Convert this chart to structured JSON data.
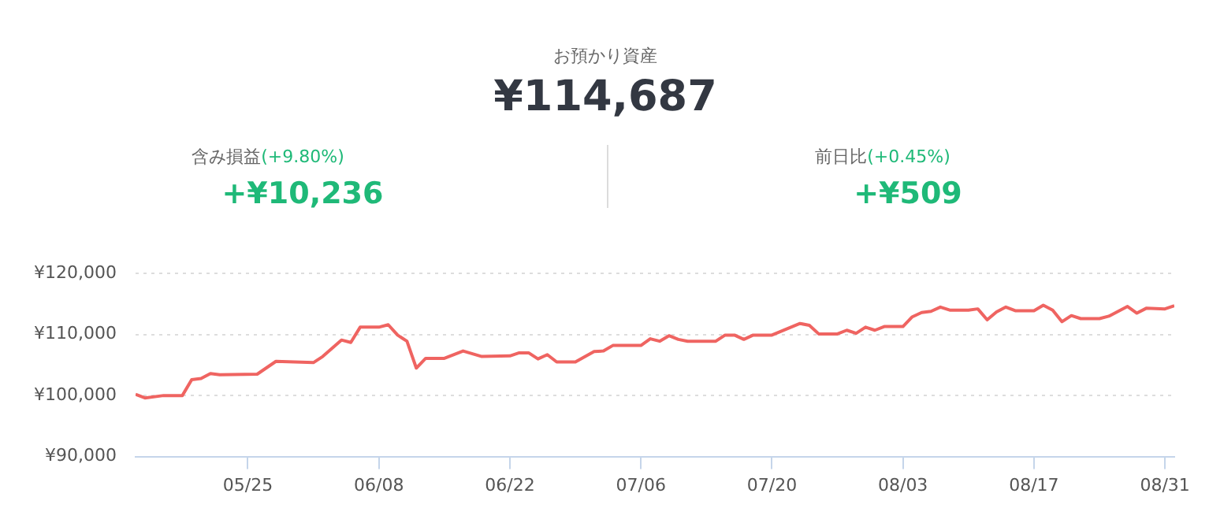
{
  "chart_data": {
    "type": "line",
    "annotations": [
      "お預かり資産",
      "¥114,687",
      "含み損益",
      "(+9.80%)",
      "+¥10,236",
      "前日比",
      "(+0.45%)",
      "+¥509"
    ],
    "x": [
      "--05-13",
      "--05-14",
      "--05-16",
      "--05-18",
      "--05-19",
      "--05-20",
      "--05-21",
      "--05-22",
      "--05-26",
      "--05-28",
      "--06-01",
      "--06-02",
      "--06-04",
      "--06-05",
      "--06-06",
      "--06-08",
      "--06-09",
      "--06-10",
      "--06-11",
      "--06-12",
      "--06-13",
      "--06-15",
      "--06-17",
      "--06-19",
      "--06-22",
      "--06-23",
      "--06-24",
      "--06-25",
      "--06-26",
      "--06-27",
      "--06-29",
      "--07-01",
      "--07-02",
      "--07-03",
      "--07-06",
      "--07-07",
      "--07-08",
      "--07-09",
      "--07-10",
      "--07-11",
      "--07-14",
      "--07-15",
      "--07-16",
      "--07-17",
      "--07-18",
      "--07-20",
      "--07-23",
      "--07-24",
      "--07-25",
      "--07-27",
      "--07-28",
      "--07-29",
      "--07-30",
      "--07-31",
      "--08-01",
      "--08-03",
      "--08-04",
      "--08-05",
      "--08-06",
      "--08-07",
      "--08-08",
      "--08-10",
      "--08-11",
      "--08-12",
      "--08-13",
      "--08-14",
      "--08-15",
      "--08-17",
      "--08-18",
      "--08-19",
      "--08-20",
      "--08-21",
      "--08-22",
      "--08-24",
      "--08-25",
      "--08-27",
      "--08-28",
      "--08-29",
      "--08-31",
      "--09-01"
    ],
    "series": [
      {
        "color": "#ef6461",
        "values": [
          100200,
          99600,
          100000,
          100000,
          102600,
          102800,
          103600,
          103400,
          103500,
          105600,
          105400,
          106400,
          109100,
          108700,
          111200,
          111200,
          111600,
          109900,
          108900,
          104500,
          106100,
          106100,
          107300,
          106400,
          106500,
          107000,
          107000,
          106000,
          106700,
          105500,
          105500,
          107200,
          107300,
          108200,
          108200,
          109300,
          108900,
          109800,
          109200,
          108900,
          108900,
          109900,
          109900,
          109200,
          109900,
          109900,
          111800,
          111500,
          110100,
          110100,
          110700,
          110200,
          111200,
          110700,
          111300,
          111300,
          112900,
          113600,
          113800,
          114500,
          114000,
          114000,
          114200,
          112400,
          113700,
          114500,
          113900,
          113900,
          114800,
          114000,
          112100,
          113100,
          112600,
          112600,
          113000,
          114600,
          113500,
          114300,
          114200,
          114700
        ]
      }
    ],
    "xlim": [
      "--05-13",
      "--09-01"
    ],
    "xticks": [
      {
        "value": "--05-25",
        "label": "05/25"
      },
      {
        "value": "--06-08",
        "label": "06/08"
      },
      {
        "value": "--06-22",
        "label": "06/22"
      },
      {
        "value": "--07-06",
        "label": "07/06"
      },
      {
        "value": "--07-20",
        "label": "07/20"
      },
      {
        "value": "--08-03",
        "label": "08/03"
      },
      {
        "value": "--08-17",
        "label": "08/17"
      },
      {
        "value": "--08-31",
        "label": "08/31"
      }
    ],
    "ylim": [
      90000,
      120000
    ],
    "yticks": [
      {
        "value": 90000,
        "label": "¥90,000"
      },
      {
        "value": 100000,
        "label": "¥100,000"
      },
      {
        "value": 110000,
        "label": "¥110,000"
      },
      {
        "value": 120000,
        "label": "¥120,000"
      }
    ],
    "grid": "y",
    "legend": false,
    "marker": "none",
    "line_style": "solid"
  }
}
